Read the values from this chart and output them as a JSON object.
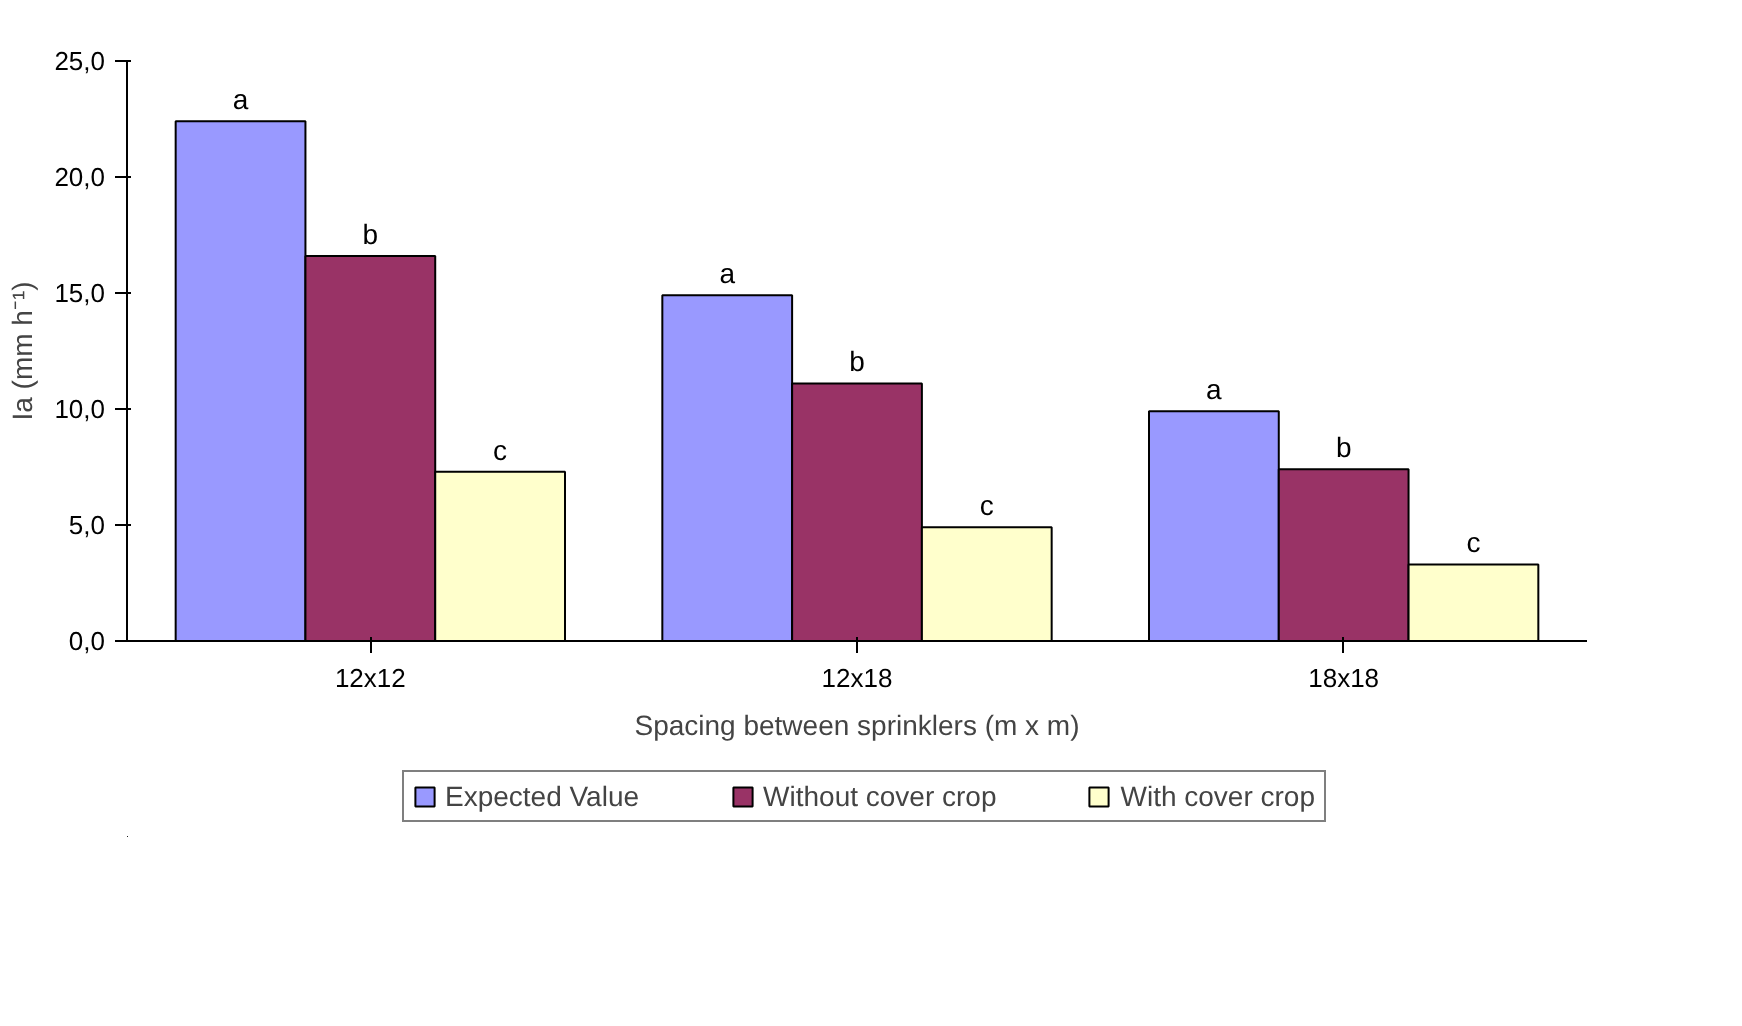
{
  "chart_data": {
    "type": "bar",
    "xlabel": "Spacing between sprinklers (m x m)",
    "ylabel": "Ia (mm h⁻¹)",
    "categories": [
      "12x12",
      "12x18",
      "18x18"
    ],
    "series": [
      {
        "name": "Expected Value",
        "color": "#9999ff",
        "values": [
          22.4,
          14.9,
          9.9
        ]
      },
      {
        "name": "Without cover crop",
        "color": "#993366",
        "values": [
          16.6,
          11.1,
          7.4
        ]
      },
      {
        "name": "With cover crop",
        "color": "#ffffcc",
        "values": [
          7.3,
          4.9,
          3.3
        ]
      }
    ],
    "ylim": [
      0,
      25
    ],
    "yticks": [
      {
        "value": 0,
        "label": "0,0"
      },
      {
        "value": 5,
        "label": "5,0"
      },
      {
        "value": 10,
        "label": "10,0"
      },
      {
        "value": 15,
        "label": "15,0"
      },
      {
        "value": 20,
        "label": "20,0"
      },
      {
        "value": 25,
        "label": "25,0"
      }
    ],
    "annotations": [
      "a",
      "b",
      "c",
      "a",
      "b",
      "c",
      "a",
      "b",
      "c"
    ],
    "grid": false,
    "legend": "bottom"
  }
}
